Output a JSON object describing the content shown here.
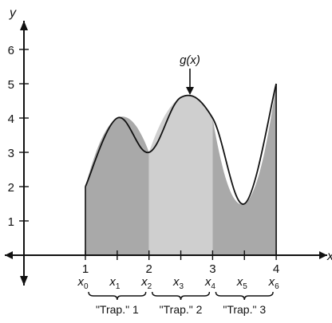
{
  "figure": {
    "x_axis_label": "x",
    "y_axis_label": "y",
    "function_label": "g(x)",
    "x_range": [
      1,
      4
    ],
    "y_range": [
      0,
      6
    ],
    "x_ticks": [
      {
        "value": 1,
        "label": "1"
      },
      {
        "value": 1.5,
        "label": ""
      },
      {
        "value": 2,
        "label": "2"
      },
      {
        "value": 2.5,
        "label": ""
      },
      {
        "value": 3,
        "label": "3"
      },
      {
        "value": 3.5,
        "label": ""
      },
      {
        "value": 4,
        "label": "4"
      }
    ],
    "y_ticks": [
      {
        "value": 1,
        "label": "1"
      },
      {
        "value": 2,
        "label": "2"
      },
      {
        "value": 3,
        "label": "3"
      },
      {
        "value": 4,
        "label": "4"
      },
      {
        "value": 5,
        "label": "5"
      },
      {
        "value": 6,
        "label": "6"
      }
    ],
    "subscript_points": [
      {
        "value": 1,
        "base": "x",
        "sub": "0"
      },
      {
        "value": 1.5,
        "base": "x",
        "sub": "1"
      },
      {
        "value": 2,
        "base": "x",
        "sub": "2"
      },
      {
        "value": 2.5,
        "base": "x",
        "sub": "3"
      },
      {
        "value": 3,
        "base": "x",
        "sub": "4"
      },
      {
        "value": 3.5,
        "base": "x",
        "sub": "5"
      },
      {
        "value": 4,
        "base": "x",
        "sub": "6"
      }
    ],
    "trapezoids": [
      {
        "label": "\"Trap.\" 1",
        "from": 1,
        "to": 2,
        "color": "#a9a9a9"
      },
      {
        "label": "\"Trap.\" 2",
        "from": 2,
        "to": 3,
        "color": "#cfcfcf"
      },
      {
        "label": "\"Trap.\" 3",
        "from": 3,
        "to": 4,
        "color": "#a9a9a9"
      }
    ],
    "curve_points": [
      [
        1,
        2
      ],
      [
        1.5,
        4
      ],
      [
        2,
        3
      ],
      [
        2.5,
        4.6
      ],
      [
        3,
        4
      ],
      [
        3.5,
        1.5
      ],
      [
        4,
        5
      ]
    ]
  }
}
